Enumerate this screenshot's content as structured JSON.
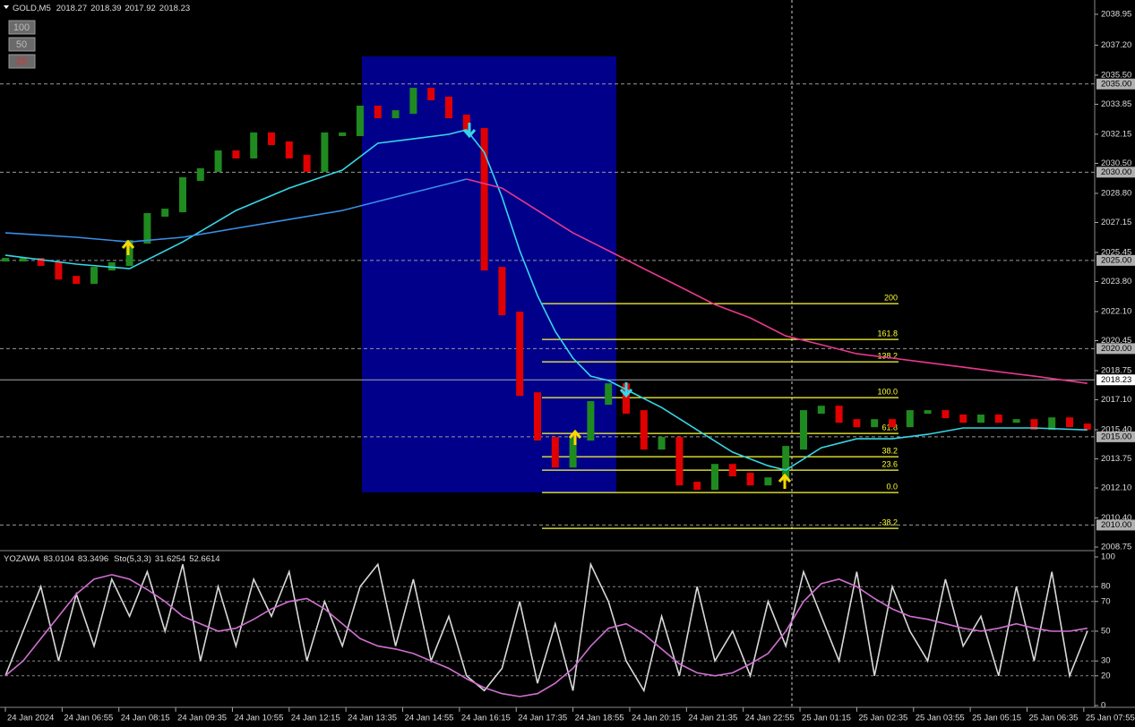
{
  "chart_data": [
    {
      "type": "price_bars",
      "symbol": "GOLD,M5",
      "quote": [
        2018.27,
        2018.39,
        2017.92,
        2018.23
      ],
      "buttons": [
        "100",
        "50",
        "25"
      ],
      "up_color": "#1f8a1f",
      "down_color": "#e00000",
      "closes": [
        2025.04,
        2025.04,
        2024.79,
        2024.02,
        2023.77,
        2024.53,
        2024.79,
        2026.05,
        2027.58,
        2027.83,
        2029.61,
        2030.12,
        2031.13,
        2030.88,
        2032.15,
        2031.64,
        2030.88,
        2030.12,
        2032.15,
        2032.15,
        2033.67,
        2033.16,
        2033.41,
        2034.68,
        2034.18,
        2033.16,
        2032.4,
        2024.53,
        2021.99,
        2017.42,
        2014.89,
        2013.36,
        2014.89,
        2016.92,
        2017.93,
        2016.41,
        2014.38,
        2014.89,
        2012.35,
        2012.1,
        2013.36,
        2012.86,
        2012.35,
        2012.6,
        2014.38,
        2016.41,
        2016.66,
        2015.9,
        2015.65,
        2015.9,
        2015.65,
        2016.41,
        2016.41,
        2016.16,
        2015.9,
        2016.16,
        2015.9,
        2015.9,
        2015.5,
        2016.0,
        2015.65,
        2015.5
      ],
      "series": [
        {
          "color": "#37d6e8",
          "x": [
            0,
            4,
            7,
            10,
            13,
            16,
            19,
            21,
            23,
            25,
            26,
            27,
            28,
            29,
            30,
            31,
            32,
            33,
            34,
            35,
            37,
            39,
            41,
            43,
            44,
            46,
            48,
            50,
            52,
            54,
            56,
            58,
            61
          ],
          "values": [
            2025.29,
            2024.79,
            2024.53,
            2026.05,
            2027.83,
            2029.1,
            2030.12,
            2031.64,
            2031.89,
            2032.15,
            2032.4,
            2031.13,
            2028.59,
            2025.55,
            2023.01,
            2020.98,
            2019.46,
            2018.44,
            2018.19,
            2017.68,
            2016.66,
            2015.39,
            2014.13,
            2013.36,
            2013.11,
            2014.38,
            2014.89,
            2014.89,
            2015.14,
            2015.5,
            2015.5,
            2015.5,
            2015.39
          ]
        },
        {
          "color": "#3a8ee8",
          "x": [
            0,
            4,
            7,
            10,
            13,
            16,
            19,
            21,
            23,
            25,
            26
          ],
          "values": [
            2026.56,
            2026.31,
            2026.05,
            2026.31,
            2026.82,
            2027.32,
            2027.83,
            2028.34,
            2028.85,
            2029.35,
            2029.61
          ]
        },
        {
          "color": "#e8388f",
          "x": [
            26,
            28,
            30,
            32,
            34,
            36,
            38,
            40,
            42,
            44,
            46,
            48,
            50,
            52,
            54,
            56,
            58,
            61
          ],
          "values": [
            2029.61,
            2029.1,
            2027.83,
            2026.56,
            2025.55,
            2024.53,
            2023.52,
            2022.5,
            2021.74,
            2020.72,
            2020.22,
            2019.71,
            2019.46,
            2019.2,
            2018.95,
            2018.69,
            2018.44,
            2018.03
          ]
        }
      ],
      "fibonacci": {
        "color": "#ffff33",
        "levels": [
          {
            "label": "200",
            "price": 2022.55
          },
          {
            "label": "161.8",
            "price": 2020.52
          },
          {
            "label": "138.2",
            "price": 2019.25
          },
          {
            "label": "100.0",
            "price": 2017.22
          },
          {
            "label": "61.8",
            "price": 2015.19
          },
          {
            "label": "38.2",
            "price": 2013.87
          },
          {
            "label": "23.6",
            "price": 2013.11
          },
          {
            "label": "0.0",
            "price": 2011.84
          },
          {
            "label": "-38.2",
            "price": 2009.81
          }
        ]
      },
      "levels": [
        {
          "value": 2035,
          "label": "2035.00"
        },
        {
          "value": 2030,
          "label": "2030.00"
        },
        {
          "value": 2025,
          "label": "2025.00"
        },
        {
          "value": 2020,
          "label": "2020.00"
        },
        {
          "value": 2015,
          "label": "2015.00"
        },
        {
          "value": 2010,
          "label": "2010.00"
        }
      ],
      "current_price": 2018.23,
      "ylim": [
        2008.6,
        2039.76
      ],
      "yticks": [
        2038.95,
        {
          "value": 2037.2,
          "label": "2037.20"
        },
        {
          "value": 2035.5,
          "label": "2035.50"
        },
        2033.85,
        2032.15,
        {
          "value": 2030.5,
          "label": "2030.50"
        },
        {
          "value": 2028.8,
          "label": "2028.80"
        },
        2027.15,
        2025.45,
        {
          "value": 2023.8,
          "label": "2023.80"
        },
        {
          "value": 2022.1,
          "label": "2022.10"
        },
        2020.45,
        2018.75,
        {
          "value": 2017.1,
          "label": "2017.10"
        },
        {
          "value": 2015.4,
          "label": "2015.40"
        },
        2013.75,
        {
          "value": 2012.1,
          "label": "2012.10"
        },
        {
          "value": 2010.4,
          "label": "2010.40"
        },
        2008.75
      ],
      "xticks": [
        {
          "value": 0,
          "label": "24 Jan 2024"
        },
        {
          "value": 3.2,
          "label": "24 Jan 06:55"
        },
        {
          "value": 6.4,
          "label": "24 Jan 08:15"
        },
        {
          "value": 9.6,
          "label": "24 Jan 09:35"
        },
        {
          "value": 12.8,
          "label": "24 Jan 10:55"
        },
        {
          "value": 16,
          "label": "24 Jan 12:15"
        },
        {
          "value": 19.2,
          "label": "24 Jan 13:35"
        },
        {
          "value": 22.4,
          "label": "24 Jan 14:55"
        },
        {
          "value": 25.6,
          "label": "24 Jan 16:15"
        },
        {
          "value": 28.8,
          "label": "24 Jan 17:35"
        },
        {
          "value": 32,
          "label": "24 Jan 18:55"
        },
        {
          "value": 35.2,
          "label": "24 Jan 20:15"
        },
        {
          "value": 38.4,
          "label": "24 Jan 21:35"
        },
        {
          "value": 41.6,
          "label": "24 Jan 22:55"
        },
        {
          "value": 44.8,
          "label": "25 Jan 01:15"
        },
        {
          "value": 48,
          "label": "25 Jan 02:35"
        },
        {
          "value": 51.2,
          "label": "25 Jan 03:55"
        },
        {
          "value": 54.4,
          "label": "25 Jan 05:15"
        },
        {
          "value": 57.6,
          "label": "25 Jan 06:35"
        },
        {
          "value": 60.8,
          "label": "25 Jan 07:55"
        }
      ]
    },
    {
      "type": "line",
      "indicators": [
        {
          "name": "YOZAWA",
          "values": [
            83.0104,
            83.3496
          ]
        },
        {
          "name": "Sto(5,3,3)",
          "values": [
            31.6254,
            52.6614
          ]
        }
      ],
      "series": [
        {
          "color": "#d8d8d8",
          "values": [
            20,
            50,
            80,
            30,
            75,
            40,
            85,
            60,
            90,
            50,
            95,
            30,
            80,
            40,
            85,
            60,
            90,
            30,
            70,
            40,
            80,
            95,
            40,
            85,
            30,
            60,
            20,
            10,
            25,
            70,
            15,
            55,
            10,
            95,
            70,
            30,
            10,
            60,
            20,
            80,
            30,
            50,
            20,
            70,
            40,
            90,
            60,
            30,
            90,
            20,
            80,
            50,
            30,
            85,
            40,
            60,
            20,
            80,
            30,
            90,
            20,
            50
          ]
        },
        {
          "color": "#d070d0",
          "values": [
            20,
            30,
            45,
            60,
            75,
            85,
            88,
            85,
            78,
            70,
            60,
            55,
            50,
            52,
            58,
            65,
            70,
            72,
            65,
            55,
            45,
            40,
            38,
            35,
            30,
            25,
            18,
            12,
            8,
            6,
            8,
            15,
            25,
            40,
            52,
            55,
            48,
            38,
            28,
            22,
            20,
            22,
            28,
            35,
            50,
            70,
            82,
            85,
            80,
            72,
            65,
            60,
            58,
            55,
            52,
            50,
            52,
            55,
            52,
            50,
            50,
            52
          ]
        }
      ],
      "ylim": [
        0,
        100
      ],
      "yticks": [
        100,
        80,
        70,
        50,
        30,
        20,
        0
      ],
      "grid": [
        80,
        70,
        50,
        30,
        20
      ]
    }
  ]
}
